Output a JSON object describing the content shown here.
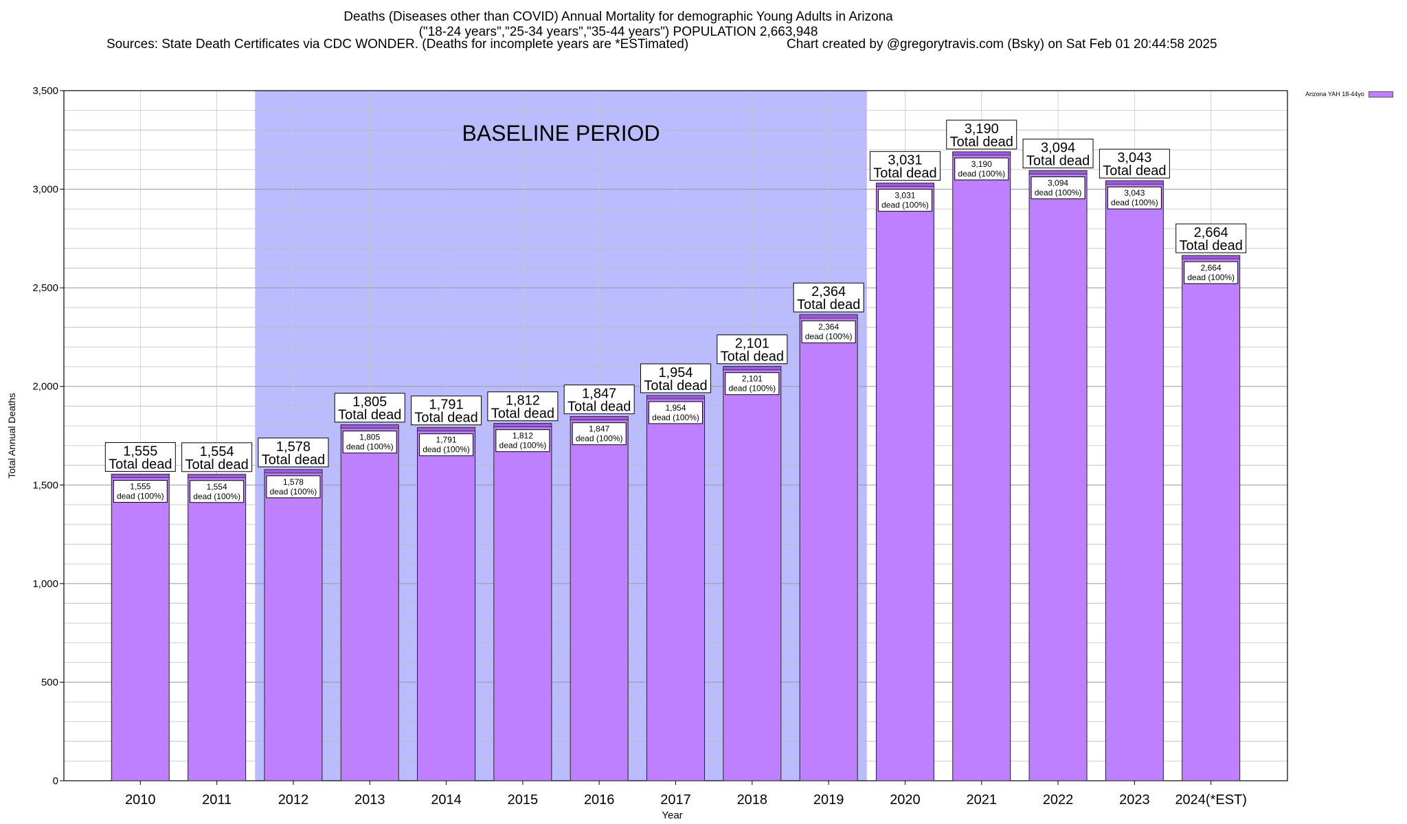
{
  "header": {
    "title_line1": "Deaths (Diseases other than COVID) Annual Mortality for demographic Young Adults in Arizona",
    "title_line2": "(\"18-24 years\",\"25-34 years\",\"35-44 years\") POPULATION 2,663,948",
    "sources": "Sources: State Death Certificates via CDC WONDER. (Deaths for incomplete years are *ESTimated)",
    "credit": "Chart created by @gregorytravis.com (Bsky) on Sat Feb 01 20:44:58 2025"
  },
  "legend": {
    "label": "Arizona YAH 18-44yo"
  },
  "colors": {
    "bar": "#bf80ff",
    "bar_top": "#a05ce0",
    "baseline_band": "#bbbbff",
    "grid": "#b0b0b0"
  },
  "chart_data": {
    "type": "bar",
    "xlabel": "Year",
    "ylabel": "Total Annual Deaths",
    "ylim": [
      0,
      3500
    ],
    "yticks": [
      0,
      500,
      1000,
      1500,
      2000,
      2500,
      3000,
      3500
    ],
    "ytick_labels": [
      "0",
      "500",
      "1,000",
      "1,500",
      "2,000",
      "2,500",
      "3,000",
      "3,500"
    ],
    "grid": true,
    "legend_position": "top-right",
    "categories": [
      "2010",
      "2011",
      "2012",
      "2013",
      "2014",
      "2015",
      "2016",
      "2017",
      "2018",
      "2019",
      "2020",
      "2021",
      "2022",
      "2023",
      "2024(*EST)"
    ],
    "series": [
      {
        "name": "Arizona YAH 18-44yo",
        "values": [
          1555,
          1554,
          1578,
          1805,
          1791,
          1812,
          1847,
          1954,
          2101,
          2364,
          3031,
          3190,
          3094,
          3043,
          2664
        ]
      }
    ],
    "value_labels": [
      "1,555",
      "1,554",
      "1,578",
      "1,805",
      "1,791",
      "1,812",
      "1,847",
      "1,954",
      "2,101",
      "2,364",
      "3,031",
      "3,190",
      "3,094",
      "3,043",
      "2,664"
    ],
    "total_label": "Total dead",
    "inner_label": "dead (100%)",
    "baseline_band": {
      "label": "BASELINE PERIOD",
      "from": "2012",
      "to": "2019"
    }
  }
}
